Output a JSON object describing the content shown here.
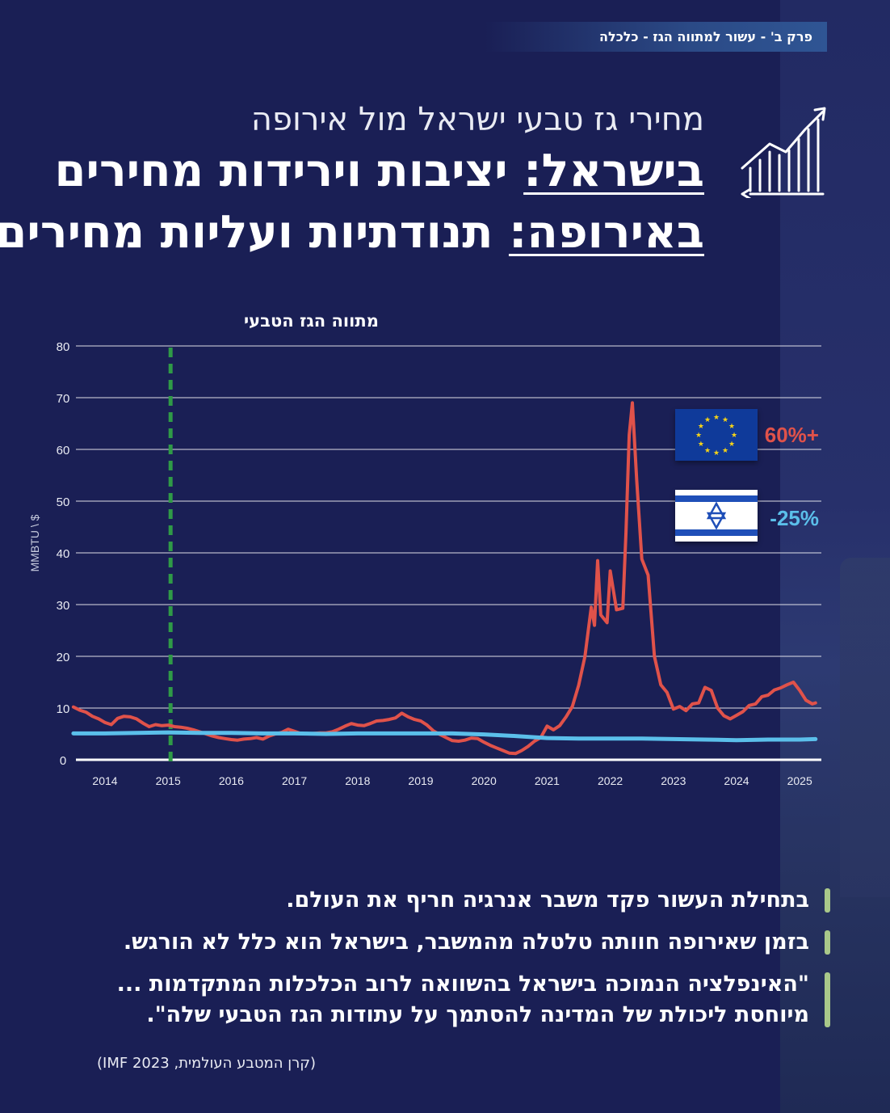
{
  "chapter_tag": "פרק ב' - עשור למתווה הגז - כלכלה",
  "subtitle": "מחירי גז טבעי ישראל מול אירופה",
  "headline_line1_keyword": "בישראל:",
  "headline_line1_rest": " יציבות וירידות מחירים",
  "headline_line2_keyword": "באירופה:",
  "headline_line2_rest": " תנודתיות ועליות מחירים",
  "icon_name": "growth-chart-icon",
  "bullets": [
    {
      "lines": [
        "בתחילת העשור פקד משבר אנרגיה חריף את העולם."
      ]
    },
    {
      "lines": [
        "בזמן שאירופה חוותה טלטלה מהמשבר, בישראל הוא כלל לא הורגש."
      ]
    },
    {
      "lines": [
        "\"האינפלציה הנמוכה בישראל בהשוואה לרוב הכלכלות המתקדמות ...",
        "מיוחסת ליכולת של המדינה להסתמך על עתודות הגז הטבעי שלה\"."
      ]
    }
  ],
  "source": "(IMF קרן המטבע העולמית, 2023)",
  "colors": {
    "background": "#1a1f55",
    "europe": "#e0524a",
    "israel": "#5bbfea",
    "marker": "#2f9a47",
    "bullet_bar": "#a9c88a"
  },
  "chart_data": {
    "type": "line",
    "ylabel": "MMBTU \\ $",
    "ylim": [
      0,
      80
    ],
    "yticks": [
      0,
      10,
      20,
      30,
      40,
      50,
      60,
      70,
      80
    ],
    "xlim": [
      2013.5,
      2025.3
    ],
    "xticks": [
      2014,
      2015,
      2016,
      2017,
      2018,
      2019,
      2020,
      2021,
      2022,
      2023,
      2024,
      2025
    ],
    "grid": true,
    "vertical_marker": {
      "x": 2015.0,
      "label": "מתווה הגז הטבעי"
    },
    "series": [
      {
        "key": "europe",
        "change_label": "60%+",
        "flag": "eu",
        "points": [
          [
            2013.5,
            10.2
          ],
          [
            2013.6,
            9.6
          ],
          [
            2013.7,
            9.2
          ],
          [
            2013.8,
            8.4
          ],
          [
            2013.9,
            7.9
          ],
          [
            2014.0,
            7.2
          ],
          [
            2014.1,
            6.8
          ],
          [
            2014.2,
            8.0
          ],
          [
            2014.3,
            8.4
          ],
          [
            2014.4,
            8.3
          ],
          [
            2014.5,
            7.9
          ],
          [
            2014.6,
            7.1
          ],
          [
            2014.7,
            6.4
          ],
          [
            2014.8,
            6.8
          ],
          [
            2014.9,
            6.6
          ],
          [
            2015.0,
            6.7
          ],
          [
            2015.1,
            6.4
          ],
          [
            2015.2,
            6.3
          ],
          [
            2015.3,
            6.1
          ],
          [
            2015.4,
            5.8
          ],
          [
            2015.5,
            5.4
          ],
          [
            2015.6,
            5.0
          ],
          [
            2015.7,
            4.6
          ],
          [
            2015.8,
            4.3
          ],
          [
            2015.9,
            4.1
          ],
          [
            2016.0,
            3.9
          ],
          [
            2016.1,
            3.8
          ],
          [
            2016.2,
            4.0
          ],
          [
            2016.3,
            4.1
          ],
          [
            2016.4,
            4.3
          ],
          [
            2016.5,
            4.0
          ],
          [
            2016.6,
            4.6
          ],
          [
            2016.7,
            5.0
          ],
          [
            2016.8,
            5.3
          ],
          [
            2016.9,
            5.9
          ],
          [
            2017.0,
            5.5
          ],
          [
            2017.1,
            5.1
          ],
          [
            2017.2,
            5.0
          ],
          [
            2017.3,
            5.1
          ],
          [
            2017.4,
            5.2
          ],
          [
            2017.5,
            5.2
          ],
          [
            2017.6,
            5.4
          ],
          [
            2017.7,
            5.9
          ],
          [
            2017.8,
            6.5
          ],
          [
            2017.9,
            7.0
          ],
          [
            2018.0,
            6.7
          ],
          [
            2018.1,
            6.6
          ],
          [
            2018.2,
            7.0
          ],
          [
            2018.3,
            7.5
          ],
          [
            2018.4,
            7.6
          ],
          [
            2018.5,
            7.8
          ],
          [
            2018.6,
            8.1
          ],
          [
            2018.7,
            9.0
          ],
          [
            2018.8,
            8.3
          ],
          [
            2018.9,
            7.8
          ],
          [
            2019.0,
            7.5
          ],
          [
            2019.1,
            6.7
          ],
          [
            2019.2,
            5.6
          ],
          [
            2019.3,
            4.9
          ],
          [
            2019.4,
            4.3
          ],
          [
            2019.5,
            3.7
          ],
          [
            2019.6,
            3.6
          ],
          [
            2019.7,
            3.8
          ],
          [
            2019.8,
            4.2
          ],
          [
            2019.9,
            4.1
          ],
          [
            2020.0,
            3.4
          ],
          [
            2020.1,
            2.8
          ],
          [
            2020.2,
            2.3
          ],
          [
            2020.3,
            1.8
          ],
          [
            2020.4,
            1.3
          ],
          [
            2020.5,
            1.2
          ],
          [
            2020.6,
            1.8
          ],
          [
            2020.7,
            2.6
          ],
          [
            2020.8,
            3.6
          ],
          [
            2020.9,
            4.3
          ],
          [
            2021.0,
            6.5
          ],
          [
            2021.1,
            5.8
          ],
          [
            2021.2,
            6.6
          ],
          [
            2021.3,
            8.3
          ],
          [
            2021.4,
            10.3
          ],
          [
            2021.5,
            14.4
          ],
          [
            2021.6,
            20.0
          ],
          [
            2021.7,
            29.5
          ],
          [
            2021.75,
            26.0
          ],
          [
            2021.8,
            38.5
          ],
          [
            2021.85,
            28.0
          ],
          [
            2021.95,
            26.5
          ],
          [
            2022.0,
            36.5
          ],
          [
            2022.1,
            29.0
          ],
          [
            2022.2,
            29.3
          ],
          [
            2022.25,
            44.0
          ],
          [
            2022.3,
            62.8
          ],
          [
            2022.35,
            69.0
          ],
          [
            2022.42,
            54.0
          ],
          [
            2022.5,
            38.8
          ],
          [
            2022.6,
            35.7
          ],
          [
            2022.7,
            20.0
          ],
          [
            2022.8,
            14.5
          ],
          [
            2022.9,
            13.0
          ],
          [
            2023.0,
            9.8
          ],
          [
            2023.1,
            10.3
          ],
          [
            2023.2,
            9.5
          ],
          [
            2023.3,
            10.8
          ],
          [
            2023.4,
            11.0
          ],
          [
            2023.5,
            14.0
          ],
          [
            2023.6,
            13.4
          ],
          [
            2023.7,
            10.0
          ],
          [
            2023.8,
            8.5
          ],
          [
            2023.9,
            7.9
          ],
          [
            2024.0,
            8.6
          ],
          [
            2024.1,
            9.3
          ],
          [
            2024.2,
            10.5
          ],
          [
            2024.3,
            10.8
          ],
          [
            2024.4,
            12.2
          ],
          [
            2024.5,
            12.5
          ],
          [
            2024.6,
            13.5
          ],
          [
            2024.7,
            13.9
          ],
          [
            2024.8,
            14.5
          ],
          [
            2024.9,
            15.0
          ],
          [
            2025.0,
            13.4
          ],
          [
            2025.1,
            11.5
          ],
          [
            2025.2,
            10.8
          ],
          [
            2025.25,
            11.0
          ]
        ]
      },
      {
        "key": "israel",
        "change_label": "-25%",
        "flag": "il",
        "points": [
          [
            2013.5,
            5.1
          ],
          [
            2014.0,
            5.1
          ],
          [
            2014.5,
            5.2
          ],
          [
            2015.0,
            5.3
          ],
          [
            2015.5,
            5.2
          ],
          [
            2016.0,
            5.2
          ],
          [
            2016.5,
            5.1
          ],
          [
            2017.0,
            5.1
          ],
          [
            2017.5,
            5.0
          ],
          [
            2018.0,
            5.1
          ],
          [
            2018.5,
            5.1
          ],
          [
            2019.0,
            5.1
          ],
          [
            2019.5,
            5.1
          ],
          [
            2020.0,
            4.9
          ],
          [
            2020.5,
            4.6
          ],
          [
            2021.0,
            4.2
          ],
          [
            2021.5,
            4.1
          ],
          [
            2022.0,
            4.1
          ],
          [
            2022.5,
            4.1
          ],
          [
            2023.0,
            4.0
          ],
          [
            2023.5,
            3.9
          ],
          [
            2024.0,
            3.8
          ],
          [
            2024.5,
            3.9
          ],
          [
            2025.0,
            3.9
          ],
          [
            2025.25,
            4.0
          ]
        ]
      }
    ]
  }
}
